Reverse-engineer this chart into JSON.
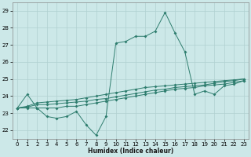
{
  "title": "",
  "xlabel": "Humidex (Indice chaleur)",
  "xlim": [
    -0.5,
    23.5
  ],
  "ylim": [
    21.5,
    29.5
  ],
  "yticks": [
    22,
    23,
    24,
    25,
    26,
    27,
    28,
    29
  ],
  "xticks": [
    0,
    1,
    2,
    3,
    4,
    5,
    6,
    7,
    8,
    9,
    10,
    11,
    12,
    13,
    14,
    15,
    16,
    17,
    18,
    19,
    20,
    21,
    22,
    23
  ],
  "bg_color": "#cce8e8",
  "grid_color": "#b0d0d0",
  "line_color": "#2e7d6e",
  "lines": [
    [
      23.3,
      24.1,
      23.3,
      22.8,
      22.7,
      22.8,
      23.1,
      22.3,
      21.7,
      22.8,
      27.1,
      27.2,
      27.5,
      27.5,
      27.8,
      28.9,
      27.7,
      26.6,
      24.1,
      24.3,
      24.1,
      24.6,
      24.7,
      24.9
    ],
    [
      23.3,
      23.3,
      23.3,
      23.3,
      23.3,
      23.4,
      23.4,
      23.5,
      23.6,
      23.7,
      23.8,
      23.9,
      24.0,
      24.1,
      24.2,
      24.3,
      24.4,
      24.45,
      24.5,
      24.6,
      24.65,
      24.7,
      24.8,
      24.9
    ],
    [
      23.3,
      23.35,
      23.5,
      23.5,
      23.55,
      23.6,
      23.65,
      23.7,
      23.8,
      23.85,
      23.95,
      24.05,
      24.15,
      24.25,
      24.35,
      24.4,
      24.5,
      24.55,
      24.6,
      24.65,
      24.75,
      24.85,
      24.9,
      25.0
    ],
    [
      23.3,
      23.4,
      23.6,
      23.65,
      23.7,
      23.75,
      23.8,
      23.9,
      24.0,
      24.1,
      24.2,
      24.3,
      24.4,
      24.5,
      24.55,
      24.6,
      24.65,
      24.7,
      24.75,
      24.8,
      24.85,
      24.9,
      24.95,
      25.0
    ]
  ],
  "markersize": 2.0
}
